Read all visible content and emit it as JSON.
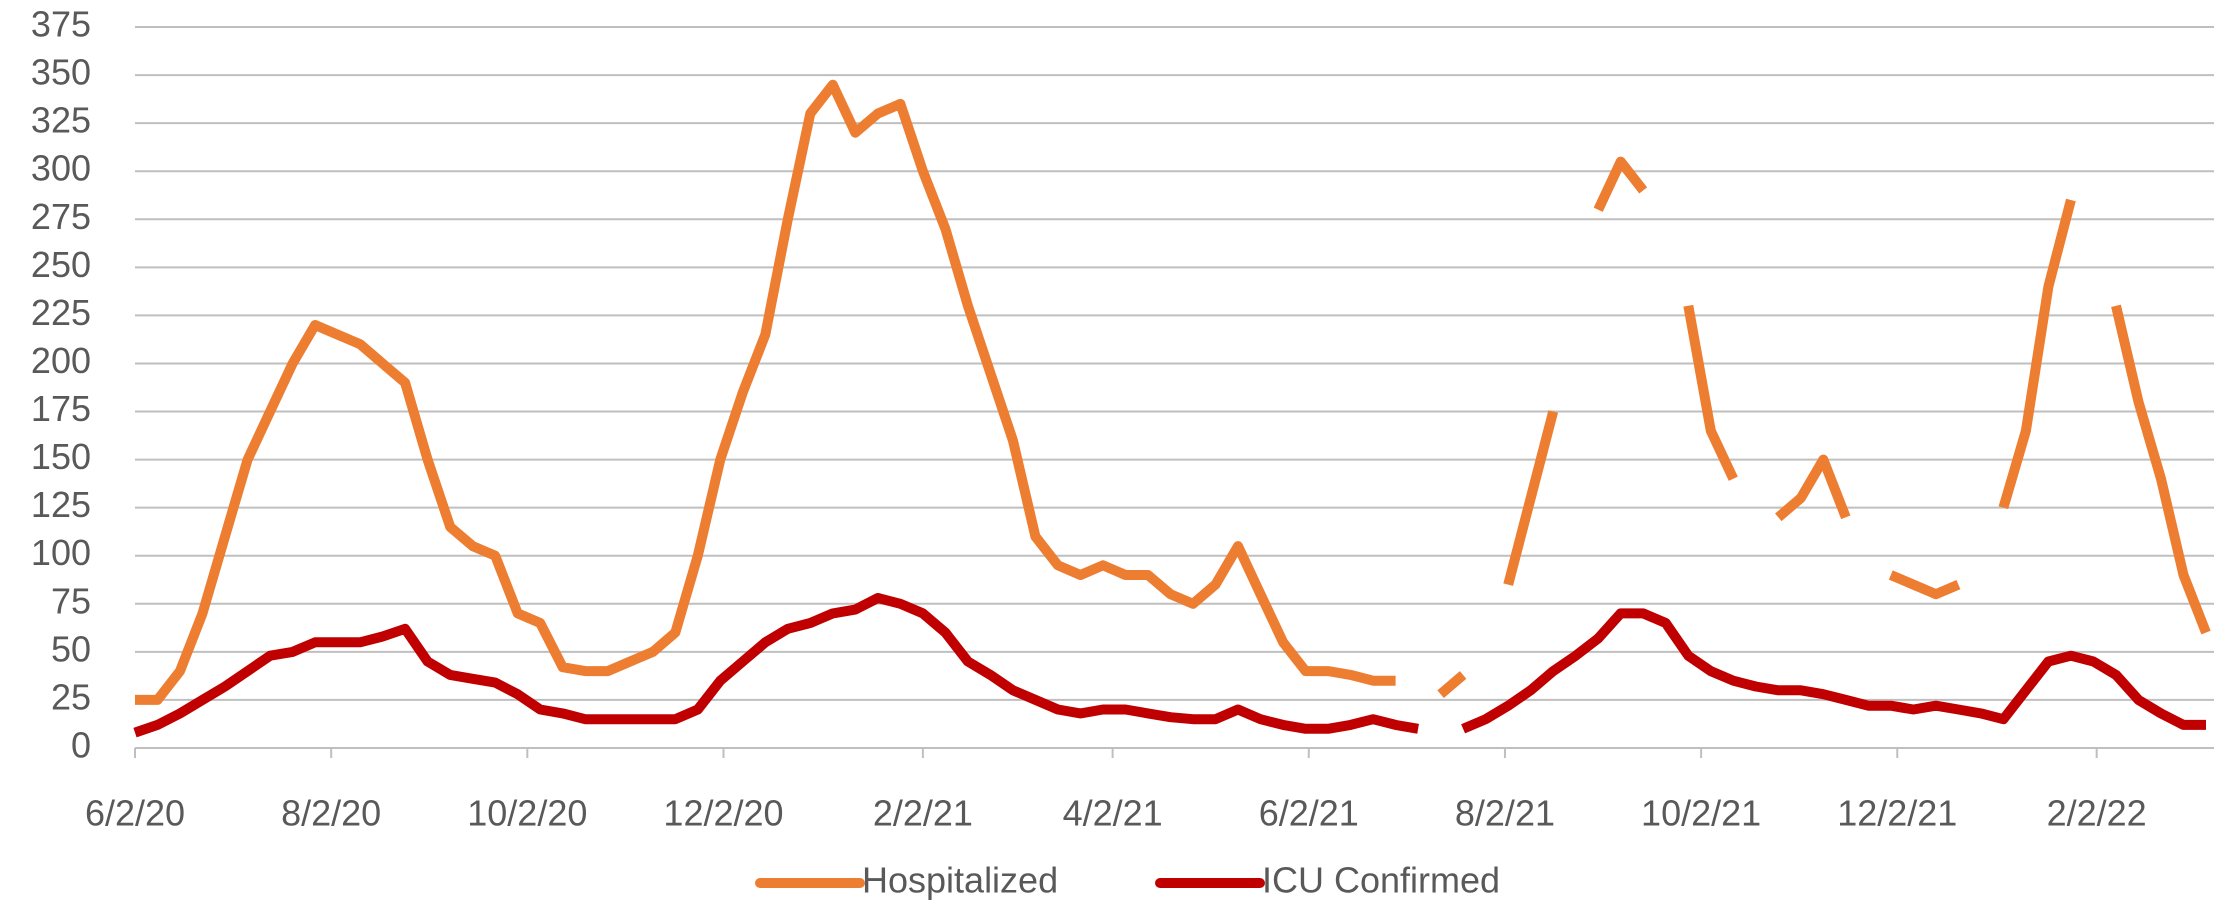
{
  "chart_data": {
    "type": "line",
    "x": [
      "6/2/20",
      "6/9/20",
      "6/16/20",
      "6/23/20",
      "6/30/20",
      "7/7/20",
      "7/14/20",
      "7/21/20",
      "7/28/20",
      "8/4/20",
      "8/11/20",
      "8/18/20",
      "8/25/20",
      "9/1/20",
      "9/8/20",
      "9/15/20",
      "9/22/20",
      "9/29/20",
      "10/6/20",
      "10/13/20",
      "10/20/20",
      "10/27/20",
      "11/3/20",
      "11/10/20",
      "11/17/20",
      "11/24/20",
      "12/1/20",
      "12/8/20",
      "12/15/20",
      "12/22/20",
      "12/29/20",
      "1/5/21",
      "1/12/21",
      "1/19/21",
      "1/26/21",
      "2/2/21",
      "2/9/21",
      "2/16/21",
      "2/23/21",
      "3/2/21",
      "3/9/21",
      "3/16/21",
      "3/23/21",
      "3/30/21",
      "4/6/21",
      "4/13/21",
      "4/20/21",
      "4/27/21",
      "5/4/21",
      "5/11/21",
      "5/18/21",
      "5/25/21",
      "6/1/21",
      "6/8/21",
      "6/15/21",
      "6/22/21",
      "6/29/21",
      "7/6/21",
      "7/13/21",
      "7/20/21",
      "7/27/21",
      "8/3/21",
      "8/10/21",
      "8/17/21",
      "8/24/21",
      "8/31/21",
      "9/7/21",
      "9/14/21",
      "9/21/21",
      "9/28/21",
      "10/5/21",
      "10/12/21",
      "10/19/21",
      "10/26/21",
      "11/2/21",
      "11/9/21",
      "11/16/21",
      "11/23/21",
      "11/30/21",
      "12/7/21",
      "12/14/21",
      "12/21/21",
      "12/28/21",
      "1/4/22",
      "1/11/22",
      "1/18/22",
      "1/25/22",
      "2/1/22",
      "2/8/22",
      "2/15/22",
      "2/22/22",
      "3/1/22",
      "3/8/22"
    ],
    "series": [
      {
        "name": "Hospitalized",
        "color": "#ed7d31",
        "values": [
          25,
          25,
          40,
          70,
          110,
          150,
          175,
          200,
          220,
          215,
          210,
          200,
          190,
          150,
          115,
          105,
          100,
          70,
          65,
          42,
          40,
          40,
          45,
          50,
          60,
          100,
          150,
          185,
          215,
          275,
          330,
          345,
          320,
          330,
          335,
          300,
          270,
          230,
          195,
          160,
          110,
          95,
          90,
          95,
          90,
          90,
          80,
          75,
          85,
          105,
          80,
          55,
          40,
          40,
          38,
          35,
          35,
          null,
          28,
          38,
          null,
          85,
          130,
          175,
          null,
          280,
          305,
          290,
          null,
          230,
          165,
          140,
          null,
          120,
          130,
          150,
          120,
          null,
          90,
          85,
          80,
          85,
          null,
          125,
          165,
          240,
          285,
          null,
          230,
          180,
          140,
          90,
          60
        ]
      },
      {
        "name": "ICU Confirmed",
        "color": "#c00000",
        "values": [
          8,
          12,
          18,
          25,
          32,
          40,
          48,
          50,
          55,
          55,
          55,
          58,
          62,
          45,
          38,
          36,
          34,
          28,
          20,
          18,
          15,
          15,
          15,
          15,
          15,
          20,
          35,
          45,
          55,
          62,
          65,
          70,
          72,
          78,
          75,
          70,
          60,
          45,
          38,
          30,
          25,
          20,
          18,
          20,
          20,
          18,
          16,
          15,
          15,
          20,
          15,
          12,
          10,
          10,
          12,
          15,
          12,
          10,
          null,
          10,
          15,
          22,
          30,
          40,
          48,
          57,
          70,
          70,
          65,
          48,
          40,
          35,
          32,
          30,
          30,
          28,
          25,
          22,
          22,
          20,
          22,
          20,
          18,
          15,
          30,
          45,
          48,
          45,
          38,
          25,
          18,
          12,
          12
        ]
      }
    ],
    "xlim": [
      "6/2/20",
      "3/8/22"
    ],
    "xticks": [
      "6/2/20",
      "8/2/20",
      "10/2/20",
      "12/2/20",
      "2/2/21",
      "4/2/21",
      "6/2/21",
      "8/2/21",
      "10/2/21",
      "12/2/21",
      "2/2/22"
    ],
    "ylim": [
      0,
      375
    ],
    "yticks": [
      0,
      25,
      50,
      75,
      100,
      125,
      150,
      175,
      200,
      225,
      250,
      275,
      300,
      325,
      350,
      375
    ],
    "grid": true,
    "legend": "bottom"
  }
}
